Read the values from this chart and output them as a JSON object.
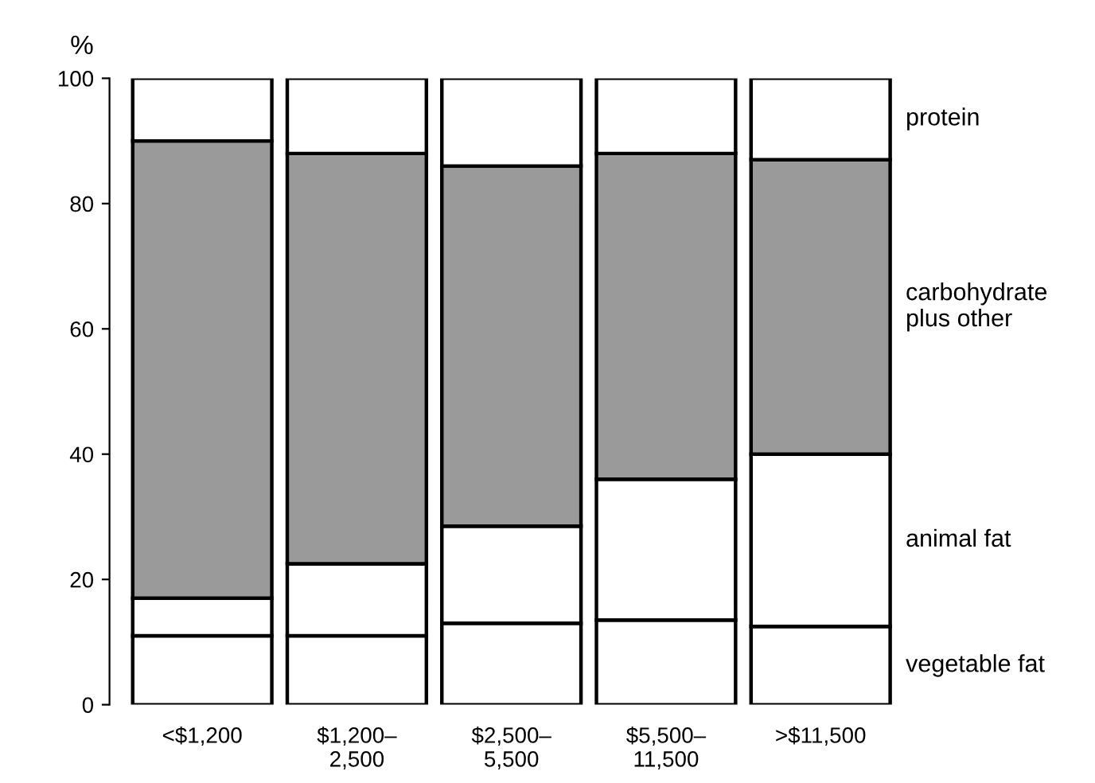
{
  "chart_data": {
    "type": "bar",
    "stacked": true,
    "ylabel": "%",
    "categories": [
      "<$1,200",
      "$1,200–\n2,500",
      "$2,500–\n5,500",
      "$5,500–\n11,500",
      ">$11,500"
    ],
    "series": [
      {
        "name": "vegetable fat",
        "color": "#ffffff",
        "values": [
          11,
          11,
          13,
          13.5,
          12.5
        ]
      },
      {
        "name": "animal fat",
        "color": "#ffffff",
        "values": [
          6,
          11.5,
          15.5,
          22.5,
          27.5
        ]
      },
      {
        "name": "carbohydrate\nplus other",
        "color": "#9a9a9a",
        "values": [
          73,
          65.5,
          57.5,
          52,
          47
        ]
      },
      {
        "name": "protein",
        "color": "#ffffff",
        "values": [
          10,
          12,
          14,
          12,
          13
        ]
      }
    ],
    "ylim": [
      0,
      100
    ],
    "yticks": [
      0,
      20,
      40,
      60,
      80,
      100
    ],
    "grid": false,
    "legend": false
  }
}
